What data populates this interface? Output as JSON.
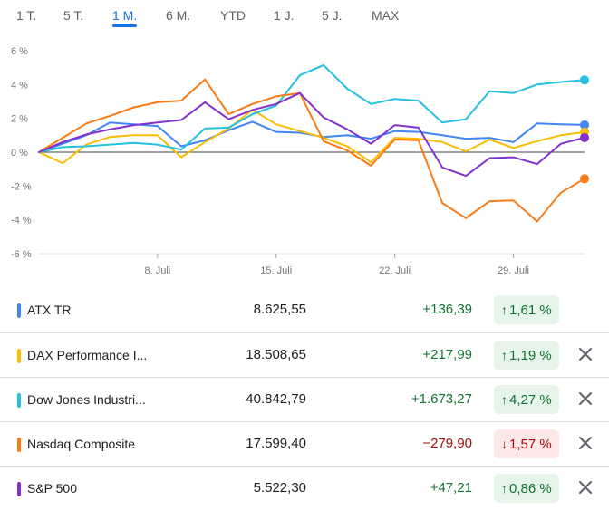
{
  "tabs": [
    {
      "label": "1 T.",
      "active": false
    },
    {
      "label": "5 T.",
      "active": false
    },
    {
      "label": "1 M.",
      "active": true
    },
    {
      "label": "6 M.",
      "active": false
    },
    {
      "label": "YTD",
      "active": false
    },
    {
      "label": "1 J.",
      "active": false
    },
    {
      "label": "5 J.",
      "active": false
    },
    {
      "label": "MAX",
      "active": false
    }
  ],
  "rows": [
    {
      "name": "ATX TR",
      "price": "8.625,55",
      "change": "+136,39",
      "percent": "1,61 %",
      "direction": "up",
      "color": "#4285f4",
      "removable": false
    },
    {
      "name": "DAX Performance I...",
      "price": "18.508,65",
      "change": "+217,99",
      "percent": "1,19 %",
      "direction": "up",
      "color": "#fbbc04",
      "removable": true
    },
    {
      "name": "Dow Jones Industri...",
      "price": "40.842,79",
      "change": "+1.673,27",
      "percent": "4,27 %",
      "direction": "up",
      "color": "#24c1e0",
      "removable": true
    },
    {
      "name": "Nasdaq Composite",
      "price": "17.599,40",
      "change": "−279,90",
      "percent": "1,57 %",
      "direction": "down",
      "color": "#fa7b17",
      "removable": true
    },
    {
      "name": "S&P 500",
      "price": "5.522,30",
      "change": "+47,21",
      "percent": "0,86 %",
      "direction": "up",
      "color": "#8430ce",
      "removable": true
    }
  ],
  "chart_data": {
    "type": "line",
    "ylim": [
      -6,
      6
    ],
    "yticks": [
      6,
      4,
      2,
      0,
      -2,
      -4,
      -6
    ],
    "ytick_labels": [
      "6 %",
      "4 %",
      "2 %",
      "0 %",
      "-2 %",
      "-4 %",
      "-6 %"
    ],
    "x": [
      "2024-07-01",
      "2024-07-02",
      "2024-07-03",
      "2024-07-04",
      "2024-07-05",
      "2024-07-08",
      "2024-07-09",
      "2024-07-10",
      "2024-07-11",
      "2024-07-12",
      "2024-07-15",
      "2024-07-16",
      "2024-07-17",
      "2024-07-18",
      "2024-07-19",
      "2024-07-22",
      "2024-07-23",
      "2024-07-24",
      "2024-07-25",
      "2024-07-26",
      "2024-07-29",
      "2024-07-30",
      "2024-07-31",
      "2024-08-01"
    ],
    "xticks": [
      {
        "label": "8. Juli",
        "x": "2024-07-08"
      },
      {
        "label": "15. Juli",
        "x": "2024-07-15"
      },
      {
        "label": "22. Juli",
        "x": "2024-07-22"
      },
      {
        "label": "29. Juli",
        "x": "2024-07-29"
      }
    ],
    "series": [
      {
        "name": "ATX TR",
        "color": "#4285f4",
        "values": [
          0.0,
          0.5,
          1.0,
          1.75,
          1.65,
          1.55,
          0.35,
          0.7,
          1.3,
          1.8,
          1.2,
          1.15,
          0.9,
          1.0,
          0.8,
          1.25,
          1.2,
          1.0,
          0.8,
          0.85,
          0.6,
          1.7,
          1.65,
          1.61
        ]
      },
      {
        "name": "DAX Performance I...",
        "color": "#fbbc04",
        "values": [
          0.0,
          -0.65,
          0.45,
          0.9,
          1.0,
          1.0,
          -0.3,
          0.6,
          1.4,
          2.5,
          1.65,
          1.25,
          0.85,
          0.35,
          -0.6,
          0.85,
          0.8,
          0.6,
          0.05,
          0.75,
          0.25,
          0.65,
          1.0,
          1.19
        ]
      },
      {
        "name": "Dow Jones Industri...",
        "color": "#24c1e0",
        "values": [
          0.0,
          0.3,
          0.35,
          0.45,
          0.55,
          0.45,
          0.15,
          1.4,
          1.45,
          2.25,
          2.75,
          4.55,
          5.15,
          3.75,
          2.85,
          3.15,
          3.05,
          1.75,
          1.95,
          3.6,
          3.5,
          4.0,
          4.15,
          4.27
        ]
      },
      {
        "name": "Nasdaq Composite",
        "color": "#fa7b17",
        "values": [
          0.0,
          0.85,
          1.7,
          2.15,
          2.65,
          2.95,
          3.05,
          4.3,
          2.25,
          2.85,
          3.3,
          3.5,
          0.65,
          0.1,
          -0.8,
          0.75,
          0.7,
          -3.0,
          -3.9,
          -2.9,
          -2.85,
          -4.1,
          -2.4,
          -1.57
        ]
      },
      {
        "name": "S&P 500",
        "color": "#8430ce",
        "values": [
          0.0,
          0.6,
          1.05,
          1.35,
          1.6,
          1.75,
          1.9,
          2.95,
          1.95,
          2.5,
          2.85,
          3.5,
          2.05,
          1.35,
          0.5,
          1.6,
          1.45,
          -0.9,
          -1.4,
          -0.35,
          -0.3,
          -0.7,
          0.5,
          0.86
        ]
      }
    ]
  }
}
